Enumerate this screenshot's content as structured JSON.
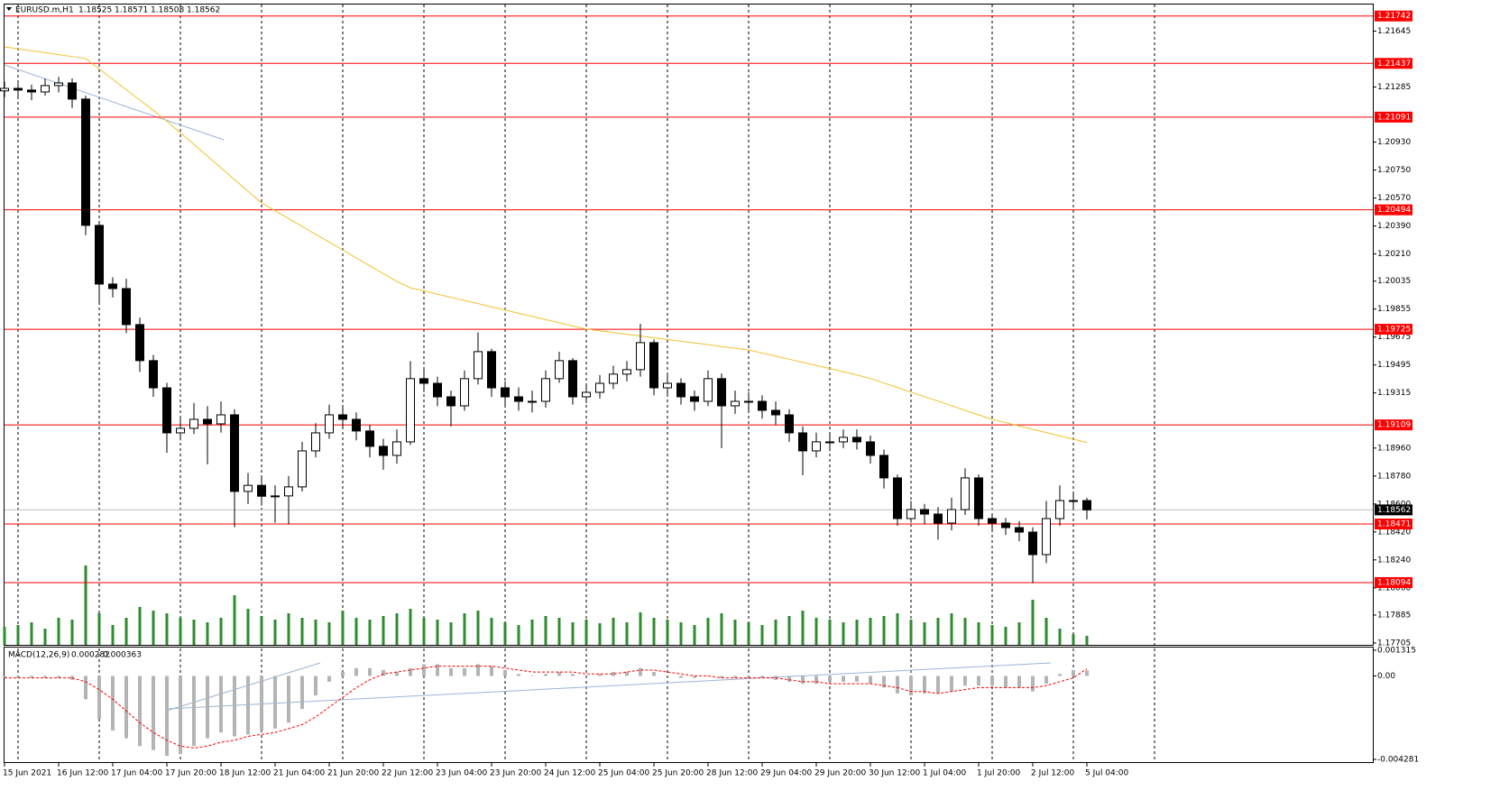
{
  "chart_data": {
    "type": "candlestick",
    "header": {
      "symbol": "EURUSD.m,H1",
      "ohlc": [
        1.18525,
        1.18571,
        1.18508,
        1.18562
      ]
    },
    "categories": [
      "15 Jun 2021",
      null,
      null,
      null,
      "16 Jun 12:00",
      null,
      null,
      null,
      "17 Jun 04:00",
      null,
      null,
      null,
      "17 Jun 20:00",
      null,
      null,
      null,
      "18 Jun 12:00",
      null,
      null,
      null,
      "21 Jun 04:00",
      null,
      null,
      null,
      "21 Jun 20:00",
      null,
      null,
      null,
      "22 Jun 12:00",
      null,
      null,
      null,
      "23 Jun 04:00",
      null,
      null,
      null,
      "23 Jun 20:00",
      null,
      null,
      null,
      "24 Jun 12:00",
      null,
      null,
      null,
      "25 Jun 04:00",
      null,
      null,
      null,
      "25 Jun 20:00",
      null,
      null,
      null,
      "28 Jun 12:00",
      null,
      null,
      null,
      "29 Jun 04:00",
      null,
      null,
      null,
      "29 Jun 20:00",
      null,
      null,
      null,
      "30 Jun 12:00",
      null,
      null,
      null,
      "1 Jul 04:00",
      null,
      null,
      null,
      "1 Jul 20:00",
      null,
      null,
      null,
      "2 Jul 12:00",
      null,
      null,
      null,
      "5 Jul 04:00"
    ],
    "open": [
      1.2126,
      1.21276,
      1.21265,
      1.21253,
      1.21294,
      1.21311,
      1.21207,
      1.20394,
      1.20016,
      1.19987,
      1.19755,
      1.19523,
      1.19348,
      1.19058,
      1.19087,
      1.19145,
      1.19116,
      1.19174,
      1.18681,
      1.1872,
      1.1865,
      1.18652,
      1.1871,
      1.18942,
      1.19058,
      1.19174,
      1.19145,
      1.1907,
      1.18971,
      1.18913,
      1.19,
      1.19407,
      1.19377,
      1.1929,
      1.19232,
      1.19407,
      1.19581,
      1.19348,
      1.1929,
      1.19261,
      1.19261,
      1.19407,
      1.19523,
      1.1929,
      1.19319,
      1.19377,
      1.19436,
      1.19465,
      1.19639,
      1.19348,
      1.19377,
      1.1929,
      1.19261,
      1.19407,
      1.19232,
      1.19261,
      1.19261,
      1.19203,
      1.19174,
      1.19058,
      1.18942,
      1.19,
      1.19,
      1.19029,
      1.19,
      1.18913,
      1.18768,
      1.18506,
      1.18564,
      1.18535,
      1.18477,
      1.18564,
      1.18768,
      1.18506,
      1.18477,
      1.18448,
      1.18419,
      1.18274,
      1.18506,
      1.18622,
      1.18622
    ],
    "high": [
      1.2132,
      1.2131,
      1.213,
      1.2134,
      1.2135,
      1.2134,
      1.2123,
      1.2042,
      1.2006,
      1.2005,
      1.198,
      1.1956,
      1.1938,
      1.1915,
      1.1925,
      1.1923,
      1.1926,
      1.1921,
      1.188,
      1.1878,
      1.1872,
      1.1878,
      1.19,
      1.1912,
      1.1924,
      1.1923,
      1.1919,
      1.1911,
      1.1902,
      1.1908,
      1.1952,
      1.1947,
      1.1942,
      1.1933,
      1.1946,
      1.19705,
      1.196,
      1.1939,
      1.1935,
      1.1933,
      1.1946,
      1.1958,
      1.1954,
      1.1937,
      1.1943,
      1.1949,
      1.1952,
      1.1976,
      1.1966,
      1.1944,
      1.1941,
      1.1933,
      1.1946,
      1.1944,
      1.1933,
      1.1932,
      1.193,
      1.1926,
      1.1921,
      1.191,
      1.1906,
      1.1906,
      1.1908,
      1.1908,
      1.1904,
      1.1895,
      1.1879,
      1.1862,
      1.186,
      1.1858,
      1.1864,
      1.1883,
      1.1879,
      1.1854,
      1.1851,
      1.1849,
      1.1845,
      1.1862,
      1.1872,
      1.1868,
      1.1864
    ],
    "low": [
      1.2122,
      1.2122,
      1.212,
      1.2123,
      1.2125,
      1.2115,
      1.2033,
      1.199,
      1.1993,
      1.197,
      1.1945,
      1.1929,
      1.1893,
      1.1901,
      1.1905,
      1.18855,
      1.1906,
      1.1845,
      1.186,
      1.1859,
      1.1848,
      1.1847,
      1.1868,
      1.189,
      1.1902,
      1.1909,
      1.1901,
      1.189,
      1.1882,
      1.1886,
      1.1898,
      1.1932,
      1.1923,
      1.191,
      1.192,
      1.1937,
      1.1929,
      1.1923,
      1.192,
      1.1919,
      1.1922,
      1.1938,
      1.1924,
      1.1925,
      1.1928,
      1.1934,
      1.1939,
      1.1942,
      1.193,
      1.193,
      1.1924,
      1.192,
      1.1923,
      1.1896,
      1.1918,
      1.192,
      1.1915,
      1.1911,
      1.19,
      1.18785,
      1.189,
      1.1894,
      1.1896,
      1.1895,
      1.1886,
      1.187,
      1.1846,
      1.1848,
      1.1847,
      1.1837,
      1.1843,
      1.1853,
      1.1846,
      1.1843,
      1.184,
      1.1836,
      1.1809,
      1.1822,
      1.1846,
      1.1856,
      1.185
    ],
    "close": [
      1.21276,
      1.21265,
      1.21253,
      1.21294,
      1.21311,
      1.21207,
      1.20394,
      1.20016,
      1.19987,
      1.19755,
      1.19523,
      1.19348,
      1.19058,
      1.19087,
      1.19145,
      1.19116,
      1.19174,
      1.18681,
      1.1872,
      1.1865,
      1.18652,
      1.1871,
      1.18942,
      1.19058,
      1.19174,
      1.19145,
      1.1907,
      1.18971,
      1.18913,
      1.19,
      1.19407,
      1.19377,
      1.1929,
      1.19232,
      1.19407,
      1.19581,
      1.19348,
      1.1929,
      1.19261,
      1.19261,
      1.19407,
      1.19523,
      1.1929,
      1.19319,
      1.19377,
      1.19436,
      1.19465,
      1.19639,
      1.19348,
      1.19377,
      1.1929,
      1.19261,
      1.19407,
      1.19232,
      1.19261,
      1.19261,
      1.19203,
      1.19174,
      1.19058,
      1.18942,
      1.19,
      1.19,
      1.19029,
      1.19,
      1.18913,
      1.18768,
      1.18506,
      1.18564,
      1.18535,
      1.18477,
      1.18564,
      1.18768,
      1.18506,
      1.18477,
      1.18448,
      1.18419,
      1.18274,
      1.18506,
      1.18622,
      1.18622,
      1.18562
    ],
    "ylim": [
      1.17693,
      1.21816
    ],
    "yticks": [
      1.21645,
      1.21285,
      {
        "value": 1.2093,
        "label": "1.20930"
      },
      {
        "value": 1.2075,
        "label": "1.20750"
      },
      {
        "value": 1.2057,
        "label": "1.20570"
      },
      {
        "value": 1.2039,
        "label": "1.20390"
      },
      {
        "value": 1.2021,
        "label": "1.20210"
      },
      1.20035,
      1.19855,
      1.19675,
      1.19495,
      1.19315,
      {
        "value": 1.1896,
        "label": "1.18960"
      },
      {
        "value": 1.1878,
        "label": "1.18780"
      },
      {
        "value": 1.186,
        "label": "1.18600"
      },
      {
        "value": 1.1842,
        "label": "1.18420"
      },
      {
        "value": 1.1824,
        "label": "1.18240"
      },
      {
        "value": 1.1806,
        "label": "1.18060"
      },
      1.17885,
      1.17705
    ],
    "levels": {
      "color": "#ff0000",
      "values": [
        1.21742,
        1.21437,
        1.21091,
        1.20494,
        1.19725,
        1.19109,
        1.18471,
        1.18094
      ]
    },
    "current_price": 1.18562,
    "ma": {
      "color": "#f2c12e",
      "values": [
        1.21543,
        1.21531,
        1.21518,
        1.21506,
        1.21493,
        1.21481,
        1.21468,
        1.21401,
        1.21334,
        1.21268,
        1.21201,
        1.21134,
        1.21065,
        1.2099,
        1.20915,
        1.2084,
        1.20764,
        1.20689,
        1.20614,
        1.20539,
        1.20488,
        1.20438,
        1.20387,
        1.20336,
        1.20286,
        1.20235,
        1.20184,
        1.20134,
        1.20083,
        1.20033,
        1.19992,
        1.19972,
        1.19951,
        1.19931,
        1.1991,
        1.1989,
        1.19869,
        1.19849,
        1.19828,
        1.19808,
        1.19787,
        1.19767,
        1.19746,
        1.19726,
        1.19715,
        1.19704,
        1.19692,
        1.19681,
        1.1967,
        1.19659,
        1.19648,
        1.19637,
        1.19626,
        1.19614,
        1.19603,
        1.19592,
        1.19572,
        1.19552,
        1.19532,
        1.19512,
        1.19492,
        1.19472,
        1.19452,
        1.19431,
        1.19408,
        1.19379,
        1.1935,
        1.1932,
        1.19291,
        1.19262,
        1.19233,
        1.19203,
        1.19174,
        1.19145,
        1.19124,
        1.19102,
        1.19081,
        1.1906,
        1.19039,
        1.19017,
        1.18996
      ]
    },
    "volume": {
      "color": "#2e8b2e",
      "values": [
        20,
        22,
        25,
        18,
        30,
        28,
        88,
        35,
        22,
        30,
        42,
        38,
        35,
        30,
        28,
        25,
        30,
        55,
        40,
        32,
        28,
        35,
        30,
        28,
        25,
        38,
        30,
        28,
        32,
        35,
        40,
        30,
        28,
        25,
        35,
        38,
        30,
        25,
        22,
        28,
        32,
        30,
        25,
        28,
        24,
        30,
        25,
        36,
        30,
        28,
        25,
        22,
        30,
        35,
        28,
        25,
        22,
        28,
        32,
        38,
        30,
        28,
        25,
        28,
        30,
        32,
        35,
        28,
        25,
        30,
        35,
        30,
        25,
        22,
        20,
        25,
        50,
        30,
        18,
        12,
        10
      ]
    },
    "macd": {
      "label": "MACD(12,26,9)",
      "current": [
        0.000282,
        0.000363
      ],
      "ylim": [
        -0.004281,
        0.001315
      ],
      "yticks": [
        0.001315,
        {
          "value": 0,
          "label": "0.00"
        },
        -0.004281
      ],
      "hist_color": "#b4b4b4",
      "signal_color": "#ff0000",
      "histogram": [
        -0.0001,
        -0.0001,
        -0.0001,
        -0.0001,
        -0.0001,
        -0.0002,
        -0.0012,
        -0.0022,
        -0.0028,
        -0.0032,
        -0.0036,
        -0.0038,
        -0.0041,
        -0.004,
        -0.0036,
        -0.0032,
        -0.0029,
        -0.0031,
        -0.003,
        -0.0028,
        -0.0027,
        -0.0024,
        -0.0017,
        -0.001,
        -0.0003,
        0.0002,
        0.0004,
        0.0004,
        0.0003,
        0.0002,
        0.0004,
        0.0006,
        0.0006,
        0.0004,
        0.0004,
        0.0006,
        0.0005,
        0.0003,
        0.0001,
        0,
        0.0001,
        0.0002,
        0.0001,
        0,
        0.0001,
        0.0002,
        0.0002,
        0.0004,
        0.0002,
        0,
        -0.0001,
        -0.0001,
        0,
        -0.0001,
        -0.0001,
        -0.0001,
        -0.0001,
        -0.0002,
        -0.0003,
        -0.0004,
        -0.0004,
        -0.0003,
        -0.0003,
        -0.0003,
        -0.0004,
        -0.0006,
        -0.0009,
        -0.001,
        -0.0009,
        -0.0009,
        -0.0008,
        -0.0005,
        -0.0005,
        -0.0005,
        -0.0006,
        -0.0006,
        -0.0008,
        -0.0004,
        0.0001,
        0.0003,
        0.000282
      ],
      "signal": [
        -0.0001,
        -0.0001,
        -0.0001,
        -0.0001,
        -0.0001,
        -0.0001,
        -0.0003,
        -0.0007,
        -0.0012,
        -0.0018,
        -0.0024,
        -0.0029,
        -0.0033,
        -0.0036,
        -0.0037,
        -0.0036,
        -0.0034,
        -0.0033,
        -0.0031,
        -0.003,
        -0.0029,
        -0.0027,
        -0.0025,
        -0.0021,
        -0.0016,
        -0.0011,
        -0.0006,
        -0.0002,
        0.0001,
        0.0002,
        0.0003,
        0.0004,
        0.0005,
        0.0005,
        0.0005,
        0.0005,
        0.0005,
        0.0004,
        0.0003,
        0.0002,
        0.0002,
        0.0002,
        0.0002,
        0.0001,
        0.0001,
        0.0001,
        0.0002,
        0.0003,
        0.0003,
        0.0002,
        0.0001,
        0,
        0,
        -0.0001,
        -0.0001,
        -0.0001,
        -0.0001,
        -0.0001,
        -0.0002,
        -0.0003,
        -0.0003,
        -0.0004,
        -0.0004,
        -0.0004,
        -0.0004,
        -0.0005,
        -0.0006,
        -0.0008,
        -0.0008,
        -0.0009,
        -0.0008,
        -0.0007,
        -0.0006,
        -0.0006,
        -0.0006,
        -0.0006,
        -0.0006,
        -0.0005,
        -0.0003,
        -0.0001,
        0.000363
      ]
    }
  }
}
